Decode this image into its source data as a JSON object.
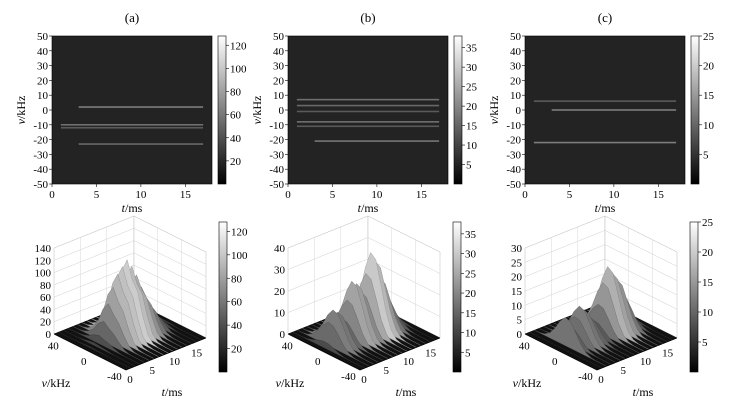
{
  "chart_data": [
    {
      "type": "heatmap",
      "panel_label": "(a)",
      "xlabel_var": "t",
      "xlabel_unit": "/ms",
      "ylabel_var": "v",
      "ylabel_unit": "/kHz",
      "xlim": [
        0,
        18
      ],
      "ylim": [
        -50,
        50
      ],
      "xticks": [
        0,
        5,
        10,
        15
      ],
      "yticks": [
        -50,
        -40,
        -30,
        -20,
        -10,
        0,
        10,
        20,
        30,
        40,
        50
      ],
      "colorbar": {
        "range": [
          0,
          128
        ],
        "ticks": [
          20,
          40,
          60,
          80,
          100,
          120
        ]
      },
      "lines": [
        {
          "v": 2,
          "t_start": 3,
          "t_end": 17,
          "intensity": 0.55
        },
        {
          "v": -10,
          "t_start": 1,
          "t_end": 17,
          "intensity": 0.45
        },
        {
          "v": -12,
          "t_start": 1,
          "t_end": 17,
          "intensity": 0.3
        },
        {
          "v": -23,
          "t_start": 3,
          "t_end": 17,
          "intensity": 0.4
        }
      ]
    },
    {
      "type": "heatmap",
      "panel_label": "(b)",
      "xlabel_var": "t",
      "xlabel_unit": "/ms",
      "ylabel_var": "v",
      "ylabel_unit": "/kHz",
      "xlim": [
        0,
        18
      ],
      "ylim": [
        -50,
        50
      ],
      "xticks": [
        0,
        5,
        10,
        15
      ],
      "yticks": [
        -50,
        -40,
        -30,
        -20,
        -10,
        0,
        10,
        20,
        30,
        40,
        50
      ],
      "colorbar": {
        "range": [
          0,
          38
        ],
        "ticks": [
          5,
          10,
          15,
          20,
          25,
          30,
          35
        ]
      },
      "lines": [
        {
          "v": 7,
          "t_start": 1,
          "t_end": 17,
          "intensity": 0.45
        },
        {
          "v": 3,
          "t_start": 1,
          "t_end": 17,
          "intensity": 0.4
        },
        {
          "v": -1,
          "t_start": 1,
          "t_end": 17,
          "intensity": 0.3
        },
        {
          "v": -8,
          "t_start": 1,
          "t_end": 17,
          "intensity": 0.45
        },
        {
          "v": -11,
          "t_start": 1,
          "t_end": 17,
          "intensity": 0.3
        },
        {
          "v": -21,
          "t_start": 3,
          "t_end": 17,
          "intensity": 0.5
        }
      ]
    },
    {
      "type": "heatmap",
      "panel_label": "(c)",
      "xlabel_var": "t",
      "xlabel_unit": "/ms",
      "ylabel_var": "v",
      "ylabel_unit": "/kHz",
      "xlim": [
        0,
        18
      ],
      "ylim": [
        -50,
        50
      ],
      "xticks": [
        0,
        5,
        10,
        15
      ],
      "yticks": [
        -50,
        -40,
        -30,
        -20,
        -10,
        0,
        10,
        20,
        30,
        40,
        50
      ],
      "colorbar": {
        "range": [
          0,
          25
        ],
        "ticks": [
          5,
          10,
          15,
          20,
          25
        ]
      },
      "lines": [
        {
          "v": 6,
          "t_start": 1,
          "t_end": 17,
          "intensity": 0.3
        },
        {
          "v": 0,
          "t_start": 3,
          "t_end": 17,
          "intensity": 0.55
        },
        {
          "v": -22,
          "t_start": 1,
          "t_end": 17,
          "intensity": 0.55
        }
      ]
    },
    {
      "type": "surface",
      "zlim": [
        0,
        140
      ],
      "zticks": [
        0,
        20,
        40,
        60,
        80,
        100,
        120,
        140
      ],
      "vticks": [
        40,
        0,
        -40
      ],
      "tticks": [
        0,
        5,
        10,
        15
      ],
      "xlabel_var": "v",
      "xlabel_unit": "/kHz",
      "ylabel_var": "t",
      "ylabel_unit": "/ms",
      "colorbar": {
        "range": [
          0,
          128
        ],
        "ticks": [
          20,
          40,
          60,
          80,
          100,
          120
        ]
      },
      "profile": [
        0,
        2,
        5,
        14,
        35,
        62,
        88,
        108,
        118,
        128,
        114,
        96,
        72,
        48,
        26,
        10,
        3,
        0
      ],
      "spiky": true
    },
    {
      "type": "surface",
      "zlim": [
        0,
        40
      ],
      "zticks": [
        0,
        10,
        20,
        30,
        40
      ],
      "vticks": [
        40,
        0,
        -40
      ],
      "tticks": [
        0,
        5,
        10,
        15
      ],
      "xlabel_var": "v",
      "xlabel_unit": "/kHz",
      "ylabel_var": "t",
      "ylabel_unit": "/ms",
      "colorbar": {
        "range": [
          0,
          38
        ],
        "ticks": [
          5,
          10,
          15,
          20,
          25,
          30,
          35
        ]
      },
      "profile": [
        0,
        3,
        11,
        16,
        14,
        10,
        18,
        26,
        24,
        19,
        27,
        36,
        31,
        22,
        13,
        6,
        2,
        0
      ],
      "spiky": false
    },
    {
      "type": "surface",
      "zlim": [
        0,
        30
      ],
      "zticks": [
        0,
        5,
        10,
        15,
        20,
        25,
        30
      ],
      "vticks": [
        40,
        0,
        -40
      ],
      "tticks": [
        0,
        5,
        10,
        15
      ],
      "xlabel_var": "v",
      "xlabel_unit": "/kHz",
      "ylabel_var": "t",
      "ylabel_unit": "/ms",
      "colorbar": {
        "range": [
          0,
          25
        ],
        "ticks": [
          5,
          10,
          15,
          20,
          25
        ]
      },
      "profile": [
        0,
        0,
        10,
        6,
        9,
        12,
        10,
        7,
        5,
        10,
        17,
        22,
        19,
        16,
        10,
        4,
        1,
        0
      ],
      "spiky": false
    }
  ]
}
